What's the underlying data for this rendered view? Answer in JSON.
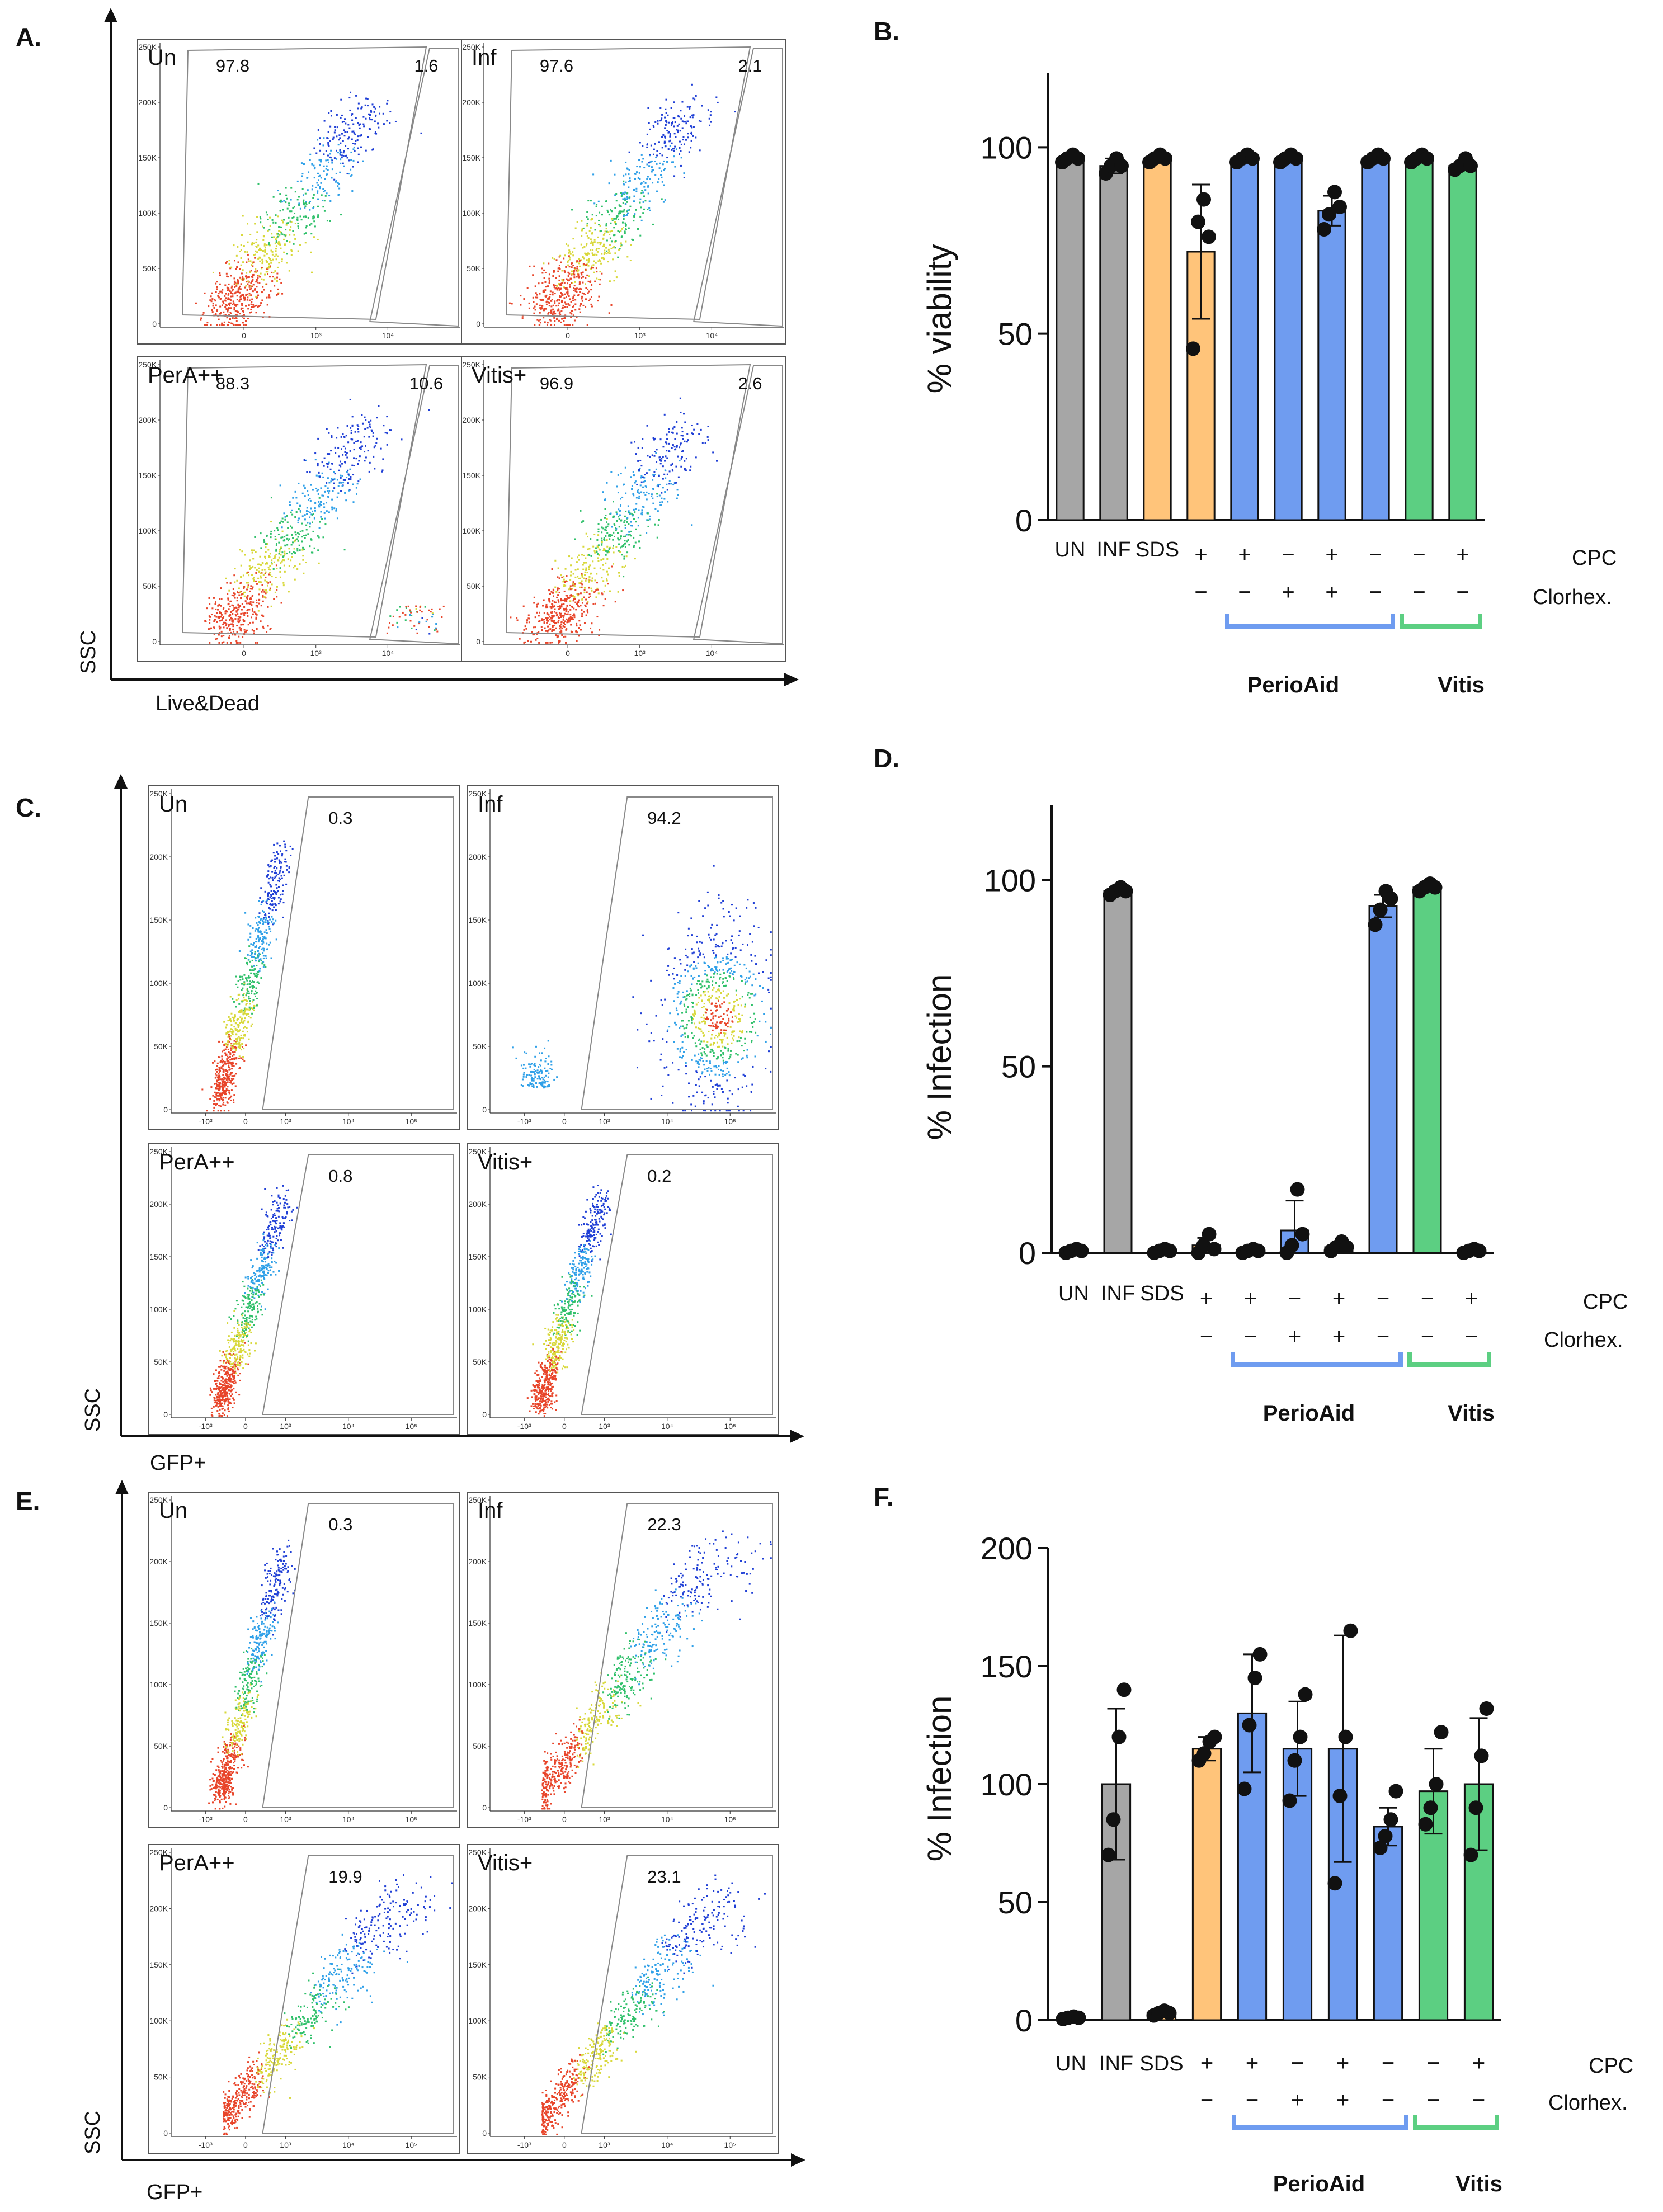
{
  "chart_data": [
    {
      "panel": "A.",
      "type": "scatter",
      "kind": "flow-cytometry",
      "xlabel": "Live&Dead",
      "ylabel": "SSC",
      "yticks": [
        "250K",
        "200K",
        "150K",
        "100K",
        "50K",
        "0"
      ],
      "xticks": [
        "0",
        "10³",
        "10⁴"
      ],
      "subplots": [
        {
          "label": "Un",
          "gates": [
            "97.8",
            "1.6"
          ]
        },
        {
          "label": "Inf",
          "gates": [
            "97.6",
            "2.1"
          ]
        },
        {
          "label": "PerA++",
          "gates": [
            "88.3",
            "10.6"
          ]
        },
        {
          "label": "Vitis+",
          "gates": [
            "96.9",
            "2.6"
          ]
        }
      ]
    },
    {
      "panel": "B.",
      "type": "bar",
      "ylabel": "% viability",
      "ylim": [
        0,
        120
      ],
      "yticks": [
        "0",
        "50",
        "100"
      ],
      "categories": [
        "UN",
        "INF",
        "SDS",
        "+/−",
        "+/−",
        "−/+",
        "+/+",
        "−/−",
        "−/−",
        "+/−"
      ],
      "cat_labels": [
        "UN",
        "INF",
        "SDS",
        "",
        "",
        "",
        "",
        "",
        "",
        ""
      ],
      "cpc": [
        "",
        "",
        "",
        "+",
        "+",
        "−",
        "+",
        "−",
        "−",
        "+"
      ],
      "clorhex": [
        "",
        "",
        "",
        "−",
        "−",
        "+",
        "+",
        "−",
        "−",
        "−"
      ],
      "colors": [
        "#a6a6a6",
        "#a6a6a6",
        "#ffc47a",
        "#ffc47a",
        "#6f9cf0",
        "#6f9cf0",
        "#6f9cf0",
        "#6f9cf0",
        "#5ccf82",
        "#5ccf82"
      ],
      "values": [
        97,
        95,
        97,
        72,
        97,
        97,
        83,
        97,
        97,
        95
      ],
      "errors": [
        1,
        2,
        1,
        18,
        1,
        1,
        4,
        1,
        1,
        1
      ],
      "points": [
        [
          96,
          97,
          98,
          97
        ],
        [
          93,
          95,
          97,
          95
        ],
        [
          96,
          97,
          98,
          97
        ],
        [
          46,
          80,
          86,
          76
        ],
        [
          96,
          97,
          98,
          97
        ],
        [
          96,
          97,
          98,
          97
        ],
        [
          78,
          82,
          88,
          84
        ],
        [
          96,
          97,
          98,
          97
        ],
        [
          96,
          97,
          98,
          97
        ],
        [
          94,
          95,
          97,
          95
        ]
      ],
      "row_labels": [
        "CPC",
        "Clorhex."
      ],
      "groups": [
        {
          "name": "PerioAid",
          "from": 4,
          "to": 7
        },
        {
          "name": "Vitis",
          "from": 8,
          "to": 9
        }
      ]
    },
    {
      "panel": "C.",
      "type": "scatter",
      "kind": "flow-cytometry",
      "xlabel": "GFP+",
      "ylabel": "SSC",
      "yticks": [
        "250K",
        "200K",
        "150K",
        "100K",
        "50K",
        "0"
      ],
      "xticks": [
        "-10³",
        "0",
        "10³",
        "10⁴",
        "10⁵"
      ],
      "subplots": [
        {
          "label": "Un",
          "gates": [
            "0.3"
          ]
        },
        {
          "label": "Inf",
          "gates": [
            "94.2"
          ]
        },
        {
          "label": "PerA++",
          "gates": [
            "0.8"
          ]
        },
        {
          "label": "Vitis+",
          "gates": [
            "0.2"
          ]
        }
      ]
    },
    {
      "panel": "D.",
      "type": "bar",
      "ylabel": "% Infection",
      "ylim": [
        0,
        120
      ],
      "yticks": [
        "0",
        "50",
        "100"
      ],
      "categories": [
        "UN",
        "INF",
        "SDS",
        "+/−",
        "+/−",
        "−/+",
        "+/+",
        "−/−",
        "−/−",
        "+/−"
      ],
      "cat_labels": [
        "UN",
        "INF",
        "SDS",
        "",
        "",
        "",
        "",
        "",
        "",
        ""
      ],
      "cpc": [
        "",
        "",
        "",
        "+",
        "+",
        "−",
        "+",
        "−",
        "−",
        "+"
      ],
      "clorhex": [
        "",
        "",
        "",
        "−",
        "−",
        "+",
        "+",
        "−",
        "−",
        "−"
      ],
      "colors": [
        "#a6a6a6",
        "#a6a6a6",
        "#ffc47a",
        "#ffc47a",
        "#6f9cf0",
        "#6f9cf0",
        "#6f9cf0",
        "#6f9cf0",
        "#5ccf82",
        "#5ccf82"
      ],
      "values": [
        0.5,
        97,
        0.5,
        2,
        0.5,
        6,
        1.5,
        93,
        98,
        0.5
      ],
      "errors": [
        0.5,
        1,
        0.5,
        2,
        0.5,
        8,
        1,
        3,
        1,
        0.5
      ],
      "points": [
        [
          0,
          0.5,
          1,
          0.5
        ],
        [
          96,
          97,
          98,
          97
        ],
        [
          0,
          0.5,
          1,
          0.5
        ],
        [
          0,
          2,
          5,
          1
        ],
        [
          0,
          0.5,
          1,
          0.5
        ],
        [
          0,
          2,
          17,
          5
        ],
        [
          0.5,
          1.5,
          3,
          1.5
        ],
        [
          88,
          92,
          97,
          95
        ],
        [
          97,
          98,
          99,
          98
        ],
        [
          0,
          0.5,
          1,
          0.5
        ]
      ],
      "row_labels": [
        "CPC",
        "Clorhex."
      ],
      "groups": [
        {
          "name": "PerioAid",
          "from": 4,
          "to": 7
        },
        {
          "name": "Vitis",
          "from": 8,
          "to": 9
        }
      ]
    },
    {
      "panel": "E.",
      "type": "scatter",
      "kind": "flow-cytometry",
      "xlabel": "GFP+",
      "ylabel": "SSC",
      "yticks": [
        "250K",
        "200K",
        "150K",
        "100K",
        "50K",
        "0"
      ],
      "xticks": [
        "-10³",
        "0",
        "10³",
        "10⁴",
        "10⁵"
      ],
      "subplots": [
        {
          "label": "Un",
          "gates": [
            "0.3"
          ]
        },
        {
          "label": "Inf",
          "gates": [
            "22.3"
          ]
        },
        {
          "label": "PerA++",
          "gates": [
            "19.9"
          ]
        },
        {
          "label": "Vitis+",
          "gates": [
            "23.1"
          ]
        }
      ]
    },
    {
      "panel": "F.",
      "type": "bar",
      "ylabel": "% Infection",
      "ylim": [
        0,
        200
      ],
      "yticks": [
        "0",
        "50",
        "100",
        "150",
        "200"
      ],
      "categories": [
        "UN",
        "INF",
        "SDS",
        "+/−",
        "+/−",
        "−/+",
        "+/+",
        "−/−",
        "−/−",
        "+/−"
      ],
      "cat_labels": [
        "UN",
        "INF",
        "SDS",
        "",
        "",
        "",
        "",
        "",
        "",
        ""
      ],
      "cpc": [
        "",
        "",
        "",
        "+",
        "+",
        "−",
        "+",
        "−",
        "−",
        "+"
      ],
      "clorhex": [
        "",
        "",
        "",
        "−",
        "−",
        "+",
        "+",
        "−",
        "−",
        "−"
      ],
      "colors": [
        "#a6a6a6",
        "#a6a6a6",
        "#ffc47a",
        "#ffc47a",
        "#6f9cf0",
        "#6f9cf0",
        "#6f9cf0",
        "#6f9cf0",
        "#5ccf82",
        "#5ccf82"
      ],
      "values": [
        1,
        100,
        3,
        115,
        130,
        115,
        115,
        82,
        97,
        100
      ],
      "errors": [
        0.5,
        32,
        0.5,
        5,
        25,
        20,
        48,
        8,
        18,
        28
      ],
      "points": [
        [
          0.5,
          1,
          1.5,
          1
        ],
        [
          70,
          85,
          120,
          140
        ],
        [
          2,
          3,
          4,
          3
        ],
        [
          110,
          113,
          118,
          120
        ],
        [
          98,
          125,
          145,
          155
        ],
        [
          93,
          110,
          120,
          138
        ],
        [
          58,
          95,
          120,
          165
        ],
        [
          73,
          78,
          85,
          97
        ],
        [
          83,
          90,
          100,
          122
        ],
        [
          70,
          90,
          112,
          132
        ]
      ],
      "row_labels": [
        "CPC",
        "Clorhex."
      ],
      "groups": [
        {
          "name": "PerioAid",
          "from": 4,
          "to": 7
        },
        {
          "name": "Vitis",
          "from": 8,
          "to": 9
        }
      ]
    }
  ]
}
